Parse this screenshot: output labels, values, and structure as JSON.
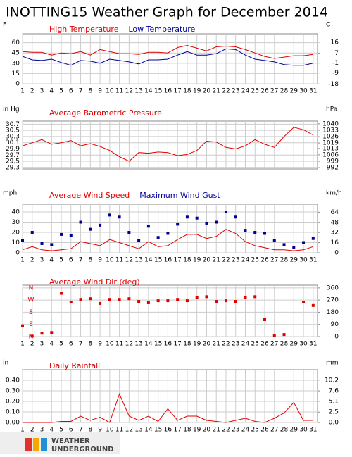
{
  "title": "INOTTING15 Weather Graph for December 2014",
  "logo": {
    "line1": "WEATHER",
    "line2": "UNDERGROUND"
  },
  "chart_data": [
    {
      "type": "line",
      "y_label": "F",
      "y2_label": "C",
      "show_xlabels": true,
      "x": [
        1,
        2,
        3,
        4,
        5,
        6,
        7,
        8,
        9,
        10,
        11,
        12,
        13,
        14,
        15,
        16,
        17,
        18,
        19,
        20,
        21,
        22,
        23,
        24,
        25,
        26,
        27,
        28,
        29,
        30,
        31
      ],
      "xlim": [
        1,
        31.45
      ],
      "ylim": [
        0,
        73
      ],
      "yticks": [
        0,
        15,
        30,
        45,
        60
      ],
      "y2lim": [
        -17.8,
        22.8
      ],
      "y2ticks": [
        -18,
        -9,
        -1,
        7,
        16
      ],
      "grid": true,
      "series": [
        {
          "name": "High Temperature",
          "color": "#e00000",
          "values": [
            47,
            46,
            46,
            42,
            45,
            44,
            47,
            42,
            50,
            47,
            44,
            44,
            43,
            46,
            46,
            45,
            53,
            56,
            52,
            48,
            54,
            55,
            54,
            50,
            45,
            40,
            37,
            39,
            41,
            41,
            43
          ]
        },
        {
          "name": "Low Temperature",
          "color": "#000099",
          "values": [
            40,
            35,
            34,
            36,
            31,
            27,
            34,
            33,
            30,
            36,
            34,
            32,
            29,
            35,
            35,
            36,
            42,
            47,
            42,
            42,
            44,
            51,
            50,
            42,
            36,
            34,
            32,
            28,
            27,
            27,
            30
          ]
        }
      ]
    },
    {
      "type": "line",
      "y_label": "in Hg",
      "y2_label": "hPa",
      "show_xlabels": false,
      "x": [
        1,
        2,
        3,
        4,
        5,
        6,
        7,
        8,
        9,
        10,
        11,
        12,
        13,
        14,
        15,
        16,
        17,
        18,
        19,
        20,
        21,
        22,
        23,
        24,
        25,
        26,
        27,
        28,
        29,
        30,
        31
      ],
      "xlim": [
        1,
        31.45
      ],
      "ylim": [
        29.25,
        30.8
      ],
      "yticks": [
        29.3,
        29.5,
        29.7,
        29.9,
        30.1,
        30.3,
        30.5,
        30.7
      ],
      "y2lim": [
        990.5,
        1043
      ],
      "y2ticks": [
        992,
        999,
        1006,
        1013,
        1019,
        1026,
        1033,
        1040
      ],
      "grid": true,
      "series": [
        {
          "name": "Average Barometric Pressure",
          "color": "#e00000",
          "values": [
            30.0,
            30.1,
            30.2,
            30.05,
            30.1,
            30.17,
            30.0,
            30.07,
            29.98,
            29.85,
            29.65,
            29.5,
            29.78,
            29.76,
            29.8,
            29.78,
            29.68,
            29.72,
            29.85,
            30.15,
            30.12,
            29.95,
            29.9,
            30.0,
            30.2,
            30.05,
            29.95,
            30.3,
            30.6,
            30.52,
            30.35
          ]
        }
      ]
    },
    {
      "type": "line",
      "y_label": "mph",
      "y2_label": "km/h",
      "show_xlabels": true,
      "x": [
        1,
        2,
        3,
        4,
        5,
        6,
        7,
        8,
        9,
        10,
        11,
        12,
        13,
        14,
        15,
        16,
        17,
        18,
        19,
        20,
        21,
        22,
        23,
        24,
        25,
        26,
        27,
        28,
        29,
        30,
        31
      ],
      "xlim": [
        1,
        31.45
      ],
      "ylim": [
        0,
        47.6
      ],
      "yticks": [
        0,
        10,
        20,
        30,
        40
      ],
      "y2lim": [
        0,
        76.6
      ],
      "y2ticks": [
        0,
        16,
        32,
        48,
        64
      ],
      "grid": true,
      "series": [
        {
          "name": "Average Wind Speed",
          "color": "#e00000",
          "style": "line",
          "values": [
            3,
            6,
            3,
            2,
            3,
            4,
            11,
            9,
            7,
            13,
            10,
            7,
            4,
            11,
            6,
            7,
            13,
            18,
            18,
            14,
            16,
            23,
            19,
            11,
            7,
            5,
            3,
            3,
            2,
            3,
            6
          ]
        },
        {
          "name": "Maximum Wind Gust",
          "color": "#000099",
          "style": "dots",
          "values": [
            12,
            20,
            9,
            8,
            18,
            17,
            30,
            23,
            27,
            37,
            35,
            20,
            12,
            26,
            15,
            19,
            28,
            35,
            34,
            29,
            30,
            40,
            35,
            22,
            20,
            19,
            12,
            8,
            5,
            10,
            14
          ]
        }
      ]
    },
    {
      "type": "scatter",
      "show_xlabels": true,
      "x": [
        1,
        2,
        3,
        4,
        5,
        6,
        7,
        8,
        9,
        10,
        11,
        12,
        13,
        14,
        15,
        16,
        17,
        18,
        19,
        20,
        21,
        22,
        23,
        24,
        25,
        26,
        27,
        28,
        29,
        30,
        31
      ],
      "xlim": [
        1,
        31.45
      ],
      "ylim": [
        0,
        380
      ],
      "yticks": [
        {
          "value": 0,
          "label": "N"
        },
        {
          "value": 90,
          "label": "E"
        },
        {
          "value": 180,
          "label": "S"
        },
        {
          "value": 270,
          "label": "W"
        },
        {
          "value": 360,
          "label": "N"
        }
      ],
      "y2lim": [
        0,
        380
      ],
      "y2ticks": [
        0,
        90,
        180,
        270,
        360
      ],
      "grid": true,
      "series": [
        {
          "name": "Average Wind Dir (deg)",
          "color": "#e00000",
          "values": [
            80,
            3,
            25,
            30,
            320,
            255,
            275,
            280,
            245,
            275,
            275,
            280,
            260,
            250,
            265,
            265,
            275,
            265,
            290,
            295,
            260,
            265,
            260,
            290,
            295,
            125,
            5,
            15,
            null,
            255,
            230
          ]
        }
      ]
    },
    {
      "type": "line",
      "y_label": "in",
      "y2_label": "mm",
      "show_xlabels": true,
      "x": [
        1,
        2,
        3,
        4,
        5,
        6,
        7,
        8,
        9,
        10,
        11,
        12,
        13,
        14,
        15,
        16,
        17,
        18,
        19,
        20,
        21,
        22,
        23,
        24,
        25,
        26,
        27,
        28,
        29,
        30,
        31
      ],
      "xlim": [
        1,
        31.45
      ],
      "ylim": [
        0,
        0.5
      ],
      "yticks": [
        {
          "value": 0,
          "label": "0.00"
        },
        {
          "value": 0.1,
          "label": "0.10"
        },
        {
          "value": 0.2,
          "label": "0.20"
        },
        {
          "value": 0.3,
          "label": "0.30"
        },
        {
          "value": 0.4,
          "label": "0.40"
        }
      ],
      "y2lim": [
        0,
        12.7
      ],
      "y2ticks": [
        {
          "value": 0,
          "label": "0.0"
        },
        2.5,
        5.1,
        7.6,
        10.2
      ],
      "grid": true,
      "series": [
        {
          "name": "Daily Rainfall",
          "color": "#e00000",
          "values": [
            0,
            0,
            0,
            0,
            0.01,
            0.01,
            0.06,
            0.02,
            0.05,
            0,
            0.27,
            0.06,
            0.02,
            0.06,
            0.01,
            0.13,
            0.02,
            0.06,
            0.06,
            0.02,
            0.01,
            0,
            0.02,
            0.04,
            0.01,
            0,
            0.04,
            0.09,
            0.19,
            0.02,
            0.02
          ]
        }
      ]
    }
  ]
}
